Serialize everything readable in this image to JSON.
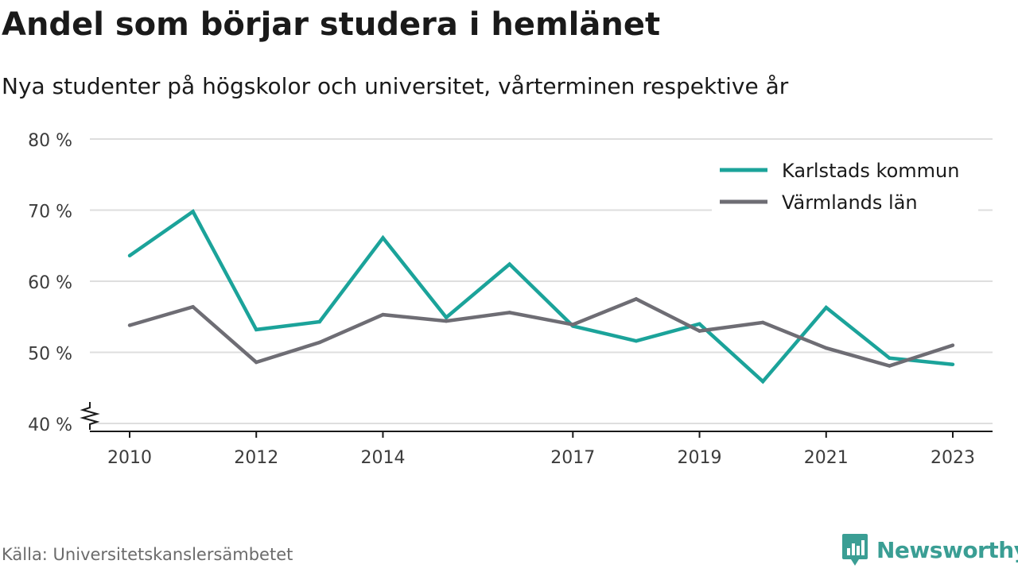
{
  "title": "Andel som börjar studera i hemlänet",
  "subtitle": "Nya studenter på högskolor och universitet, vårterminen respektive år",
  "source": "Källa: Universitetskanslersämbetet",
  "brand": {
    "name": "Newsworthy",
    "icon": "newsworthy-logo-icon",
    "color": "#3a9e94"
  },
  "chart_data": {
    "type": "line",
    "x": [
      2010,
      2011,
      2012,
      2013,
      2014,
      2015,
      2016,
      2017,
      2018,
      2019,
      2020,
      2021,
      2022,
      2023
    ],
    "x_tick_labels": [
      "2010",
      "2012",
      "2014",
      "2017",
      "2019",
      "2021",
      "2023"
    ],
    "y_tick_labels": [
      "80 %",
      "70 %",
      "60 %",
      "50 %",
      "40 %"
    ],
    "ylim": [
      40,
      80
    ],
    "y_axis_break": true,
    "grid": true,
    "legend_position": "top-right",
    "series": [
      {
        "name": "Karlstads kommun",
        "color": "#1ba39a",
        "values": [
          63.6,
          69.8,
          53.2,
          54.3,
          66.1,
          54.9,
          62.4,
          53.7,
          51.6,
          54.0,
          45.9,
          56.3,
          49.2,
          48.3
        ]
      },
      {
        "name": "Värmlands län",
        "color": "#6e6d74",
        "values": [
          53.8,
          56.4,
          48.6,
          51.4,
          55.3,
          54.4,
          55.6,
          53.9,
          57.5,
          53.0,
          54.2,
          50.6,
          48.1,
          51.0
        ]
      }
    ]
  }
}
